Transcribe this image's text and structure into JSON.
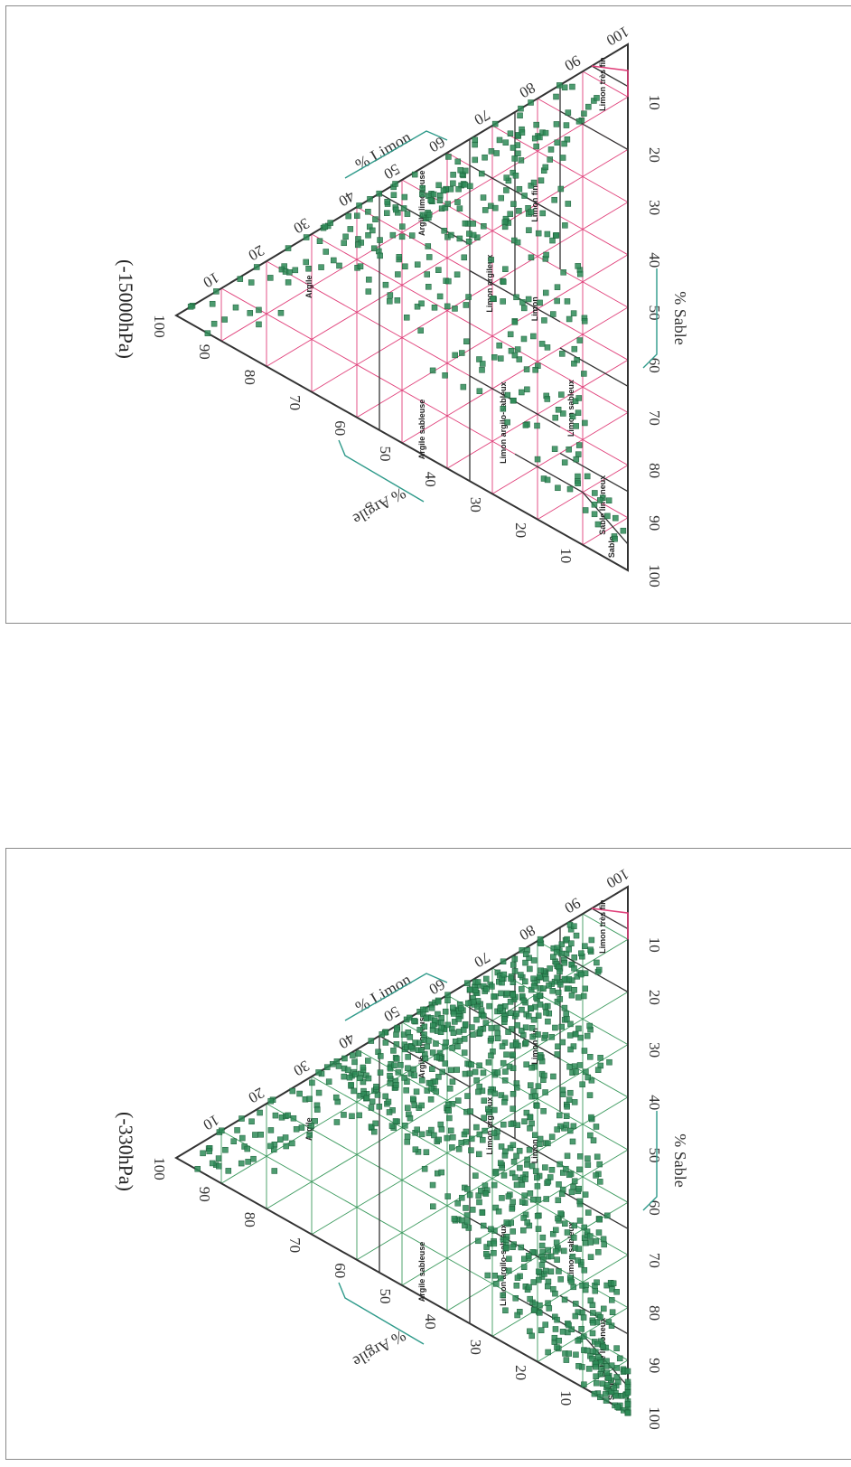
{
  "chart_data": [
    {
      "type": "scatter",
      "subtype": "ternary-texture-triangle",
      "title": "(-15000hPa)",
      "axes": {
        "clay": {
          "label": "% Argile",
          "ticks": [
            "10",
            "20",
            "30",
            "40",
            "50",
            "60",
            "70",
            "80",
            "90",
            "100"
          ]
        },
        "silt": {
          "label": "% Limon",
          "ticks": [
            "10",
            "20",
            "30",
            "40",
            "50",
            "60",
            "70",
            "80",
            "90",
            "100"
          ]
        },
        "sand": {
          "label": "% Sable",
          "ticks": [
            "10",
            "20",
            "30",
            "40",
            "50",
            "60",
            "70",
            "80",
            "90",
            "100"
          ]
        }
      },
      "classes": [
        "Argile",
        "Argile limoneuse",
        "Argile sableuse",
        "Limon argileux",
        "Limon argilo-sableux",
        "Limon sableux",
        "Limon",
        "Limon fin",
        "Limon très fin",
        "Sable limoneux",
        "Sable"
      ],
      "grid_color": "#e0407a",
      "marker_color": "#2e8b57",
      "point_count_estimate": 380,
      "points_clay_silt_sand": [
        [
          95,
          3,
          2
        ],
        [
          90,
          6,
          4
        ],
        [
          85,
          10,
          5
        ],
        [
          80,
          15,
          5
        ],
        [
          76,
          20,
          4
        ],
        [
          72,
          24,
          4
        ],
        [
          70,
          28,
          2
        ],
        [
          66,
          30,
          4
        ],
        [
          64,
          33,
          3
        ],
        [
          60,
          36,
          4
        ],
        [
          58,
          38,
          4
        ],
        [
          55,
          42,
          3
        ],
        [
          52,
          45,
          3
        ],
        [
          50,
          46,
          4
        ],
        [
          48,
          49,
          3
        ],
        [
          45,
          52,
          3
        ],
        [
          44,
          50,
          6
        ],
        [
          42,
          53,
          5
        ],
        [
          40,
          54,
          6
        ],
        [
          38,
          55,
          7
        ],
        [
          36,
          58,
          6
        ],
        [
          34,
          59,
          7
        ],
        [
          32,
          62,
          6
        ],
        [
          30,
          64,
          6
        ],
        [
          28,
          66,
          6
        ],
        [
          26,
          69,
          5
        ],
        [
          24,
          70,
          6
        ],
        [
          22,
          72,
          6
        ],
        [
          20,
          74,
          6
        ],
        [
          18,
          76,
          6
        ],
        [
          16,
          78,
          6
        ],
        [
          14,
          80,
          6
        ],
        [
          12,
          82,
          6
        ],
        [
          10,
          84,
          6
        ],
        [
          62,
          30,
          8
        ],
        [
          58,
          32,
          10
        ],
        [
          54,
          36,
          10
        ],
        [
          50,
          40,
          10
        ],
        [
          46,
          44,
          10
        ],
        [
          42,
          46,
          12
        ],
        [
          38,
          48,
          14
        ],
        [
          34,
          52,
          14
        ],
        [
          30,
          56,
          14
        ],
        [
          26,
          60,
          14
        ],
        [
          22,
          64,
          14
        ],
        [
          18,
          68,
          14
        ],
        [
          56,
          28,
          16
        ],
        [
          50,
          32,
          18
        ],
        [
          44,
          36,
          20
        ],
        [
          40,
          40,
          20
        ],
        [
          36,
          44,
          20
        ],
        [
          32,
          48,
          20
        ],
        [
          28,
          52,
          20
        ],
        [
          24,
          56,
          20
        ],
        [
          20,
          60,
          20
        ],
        [
          16,
          64,
          20
        ],
        [
          48,
          24,
          28
        ],
        [
          42,
          28,
          30
        ],
        [
          36,
          32,
          32
        ],
        [
          30,
          38,
          32
        ],
        [
          26,
          42,
          32
        ],
        [
          22,
          48,
          30
        ],
        [
          18,
          52,
          30
        ],
        [
          14,
          58,
          28
        ],
        [
          40,
          20,
          40
        ],
        [
          34,
          24,
          42
        ],
        [
          28,
          30,
          42
        ],
        [
          24,
          34,
          42
        ],
        [
          20,
          38,
          42
        ],
        [
          16,
          44,
          40
        ],
        [
          12,
          50,
          38
        ],
        [
          30,
          20,
          50
        ],
        [
          26,
          24,
          50
        ],
        [
          22,
          28,
          50
        ],
        [
          18,
          32,
          50
        ],
        [
          14,
          38,
          48
        ],
        [
          10,
          44,
          46
        ],
        [
          24,
          16,
          60
        ],
        [
          20,
          20,
          60
        ],
        [
          16,
          24,
          60
        ],
        [
          12,
          30,
          58
        ],
        [
          18,
          12,
          70
        ],
        [
          14,
          16,
          70
        ],
        [
          10,
          22,
          68
        ],
        [
          12,
          10,
          78
        ],
        [
          8,
          14,
          78
        ],
        [
          8,
          8,
          84
        ],
        [
          6,
          6,
          88
        ],
        [
          4,
          6,
          90
        ]
      ]
    },
    {
      "type": "scatter",
      "subtype": "ternary-texture-triangle",
      "title": "(-330hPa)",
      "axes": {
        "clay": {
          "label": "% Argile",
          "ticks": [
            "10",
            "20",
            "30",
            "40",
            "50",
            "60",
            "70",
            "80",
            "90",
            "100"
          ]
        },
        "silt": {
          "label": "% Limon",
          "ticks": [
            "10",
            "20",
            "30",
            "40",
            "50",
            "60",
            "70",
            "80",
            "90",
            "100"
          ]
        },
        "sand": {
          "label": "% Sable",
          "ticks": [
            "10",
            "20",
            "30",
            "40",
            "50",
            "60",
            "70",
            "80",
            "90",
            "100"
          ]
        }
      },
      "classes": [
        "Argile",
        "Argile limoneuse",
        "Argile sableuse",
        "Limon argileux",
        "Limon argilo-sableux",
        "Limon sableux",
        "Limon",
        "Limon fin",
        "Limon très fin",
        "Sable limoneux",
        "Sable"
      ],
      "grid_color": "#3c9a5e",
      "marker_color": "#2e8b57",
      "point_count_estimate": 1100,
      "points_clay_silt_sand": [
        [
          92,
          4,
          4
        ],
        [
          88,
          8,
          4
        ],
        [
          82,
          12,
          6
        ],
        [
          78,
          18,
          4
        ],
        [
          72,
          22,
          6
        ],
        [
          68,
          28,
          4
        ],
        [
          64,
          32,
          4
        ],
        [
          60,
          36,
          4
        ],
        [
          56,
          40,
          4
        ],
        [
          52,
          44,
          4
        ],
        [
          48,
          48,
          4
        ],
        [
          46,
          50,
          4
        ],
        [
          44,
          52,
          4
        ],
        [
          42,
          54,
          4
        ],
        [
          40,
          56,
          4
        ],
        [
          38,
          58,
          4
        ],
        [
          36,
          60,
          4
        ],
        [
          34,
          62,
          4
        ],
        [
          32,
          62,
          6
        ],
        [
          30,
          64,
          6
        ],
        [
          28,
          66,
          6
        ],
        [
          26,
          68,
          6
        ],
        [
          24,
          70,
          6
        ],
        [
          22,
          72,
          6
        ],
        [
          20,
          74,
          6
        ],
        [
          18,
          76,
          6
        ],
        [
          16,
          78,
          6
        ],
        [
          14,
          80,
          6
        ],
        [
          12,
          82,
          6
        ],
        [
          10,
          84,
          6
        ],
        [
          60,
          30,
          10
        ],
        [
          56,
          34,
          10
        ],
        [
          52,
          38,
          10
        ],
        [
          48,
          42,
          10
        ],
        [
          44,
          46,
          10
        ],
        [
          40,
          50,
          10
        ],
        [
          36,
          54,
          10
        ],
        [
          32,
          58,
          10
        ],
        [
          28,
          60,
          12
        ],
        [
          24,
          64,
          12
        ],
        [
          20,
          68,
          12
        ],
        [
          16,
          72,
          12
        ],
        [
          12,
          76,
          12
        ],
        [
          54,
          30,
          16
        ],
        [
          48,
          34,
          18
        ],
        [
          44,
          38,
          18
        ],
        [
          40,
          42,
          18
        ],
        [
          36,
          46,
          18
        ],
        [
          32,
          50,
          18
        ],
        [
          28,
          54,
          18
        ],
        [
          24,
          58,
          18
        ],
        [
          20,
          62,
          18
        ],
        [
          16,
          66,
          18
        ],
        [
          12,
          70,
          18
        ],
        [
          46,
          28,
          26
        ],
        [
          40,
          32,
          28
        ],
        [
          36,
          36,
          28
        ],
        [
          32,
          40,
          28
        ],
        [
          28,
          44,
          28
        ],
        [
          24,
          48,
          28
        ],
        [
          20,
          52,
          28
        ],
        [
          16,
          56,
          28
        ],
        [
          12,
          60,
          28
        ],
        [
          8,
          64,
          28
        ],
        [
          40,
          22,
          38
        ],
        [
          34,
          26,
          40
        ],
        [
          30,
          30,
          40
        ],
        [
          26,
          34,
          40
        ],
        [
          22,
          38,
          40
        ],
        [
          18,
          42,
          40
        ],
        [
          14,
          46,
          40
        ],
        [
          10,
          50,
          40
        ],
        [
          34,
          18,
          48
        ],
        [
          30,
          22,
          48
        ],
        [
          26,
          26,
          48
        ],
        [
          22,
          30,
          48
        ],
        [
          18,
          34,
          48
        ],
        [
          14,
          38,
          48
        ],
        [
          10,
          42,
          48
        ],
        [
          28,
          14,
          58
        ],
        [
          24,
          18,
          58
        ],
        [
          20,
          22,
          58
        ],
        [
          16,
          26,
          58
        ],
        [
          12,
          30,
          58
        ],
        [
          8,
          34,
          58
        ],
        [
          24,
          10,
          66
        ],
        [
          20,
          14,
          66
        ],
        [
          16,
          18,
          66
        ],
        [
          12,
          22,
          66
        ],
        [
          8,
          26,
          66
        ],
        [
          18,
          8,
          74
        ],
        [
          14,
          12,
          74
        ],
        [
          10,
          16,
          74
        ],
        [
          6,
          20,
          74
        ],
        [
          14,
          6,
          80
        ],
        [
          10,
          10,
          80
        ],
        [
          6,
          14,
          80
        ],
        [
          10,
          4,
          86
        ],
        [
          6,
          8,
          86
        ],
        [
          4,
          6,
          90
        ],
        [
          4,
          2,
          94
        ],
        [
          2,
          4,
          94
        ],
        [
          2,
          2,
          96
        ],
        [
          1,
          1,
          98
        ],
        [
          0,
          2,
          98
        ]
      ]
    }
  ]
}
